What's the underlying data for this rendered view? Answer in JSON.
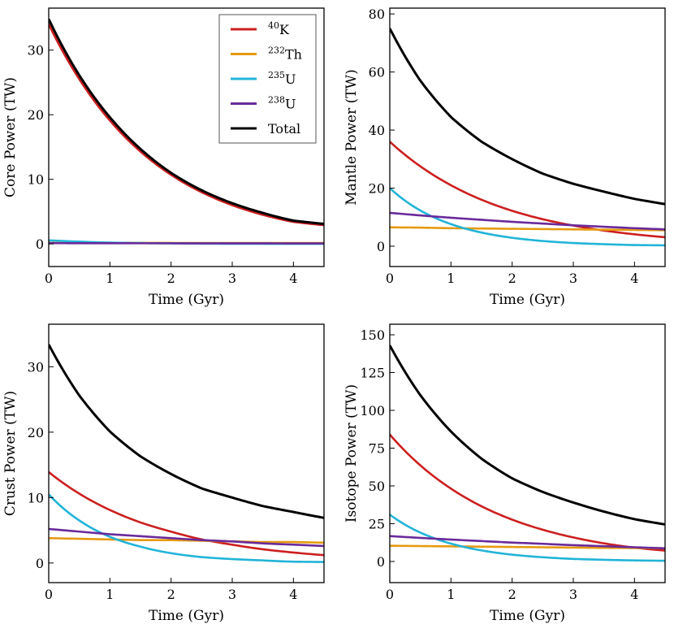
{
  "figure": {
    "legend": {
      "placement": "top-right of top-left panel",
      "entries": [
        {
          "key": "K40",
          "sup": "40",
          "base": "K",
          "color": "#cc1f1f"
        },
        {
          "key": "Th232",
          "sup": "232",
          "base": "Th",
          "color": "#e59a12"
        },
        {
          "key": "U235",
          "sup": "235",
          "base": "U",
          "color": "#22b4d8"
        },
        {
          "key": "U238",
          "sup": "238",
          "base": "U",
          "color": "#6a2a9a"
        },
        {
          "key": "Total",
          "sup": "",
          "base": "Total",
          "color": "#000000"
        }
      ]
    }
  },
  "chart_data": [
    {
      "id": "core",
      "type": "line",
      "title": "",
      "xlabel": "Time (Gyr)",
      "ylabel": "Core Power (TW)",
      "xlim": [
        0,
        4.5
      ],
      "ylim": [
        -3.5,
        36.5
      ],
      "xticks": [
        0,
        1,
        2,
        3,
        4
      ],
      "yticks": [
        0,
        10,
        20,
        30
      ],
      "grid": false,
      "x": [
        0,
        0.5,
        1,
        1.5,
        2,
        2.5,
        3,
        3.5,
        4,
        4.5
      ],
      "series": [
        {
          "name": "40K",
          "values": [
            34.0,
            25.5,
            19.1,
            14.3,
            10.7,
            8.0,
            6.0,
            4.5,
            3.4,
            2.9
          ]
        },
        {
          "name": "232Th",
          "values": [
            0.15,
            0.15,
            0.15,
            0.15,
            0.15,
            0.14,
            0.14,
            0.14,
            0.14,
            0.14
          ]
        },
        {
          "name": "235U",
          "values": [
            0.55,
            0.35,
            0.2,
            0.13,
            0.08,
            0.05,
            0.03,
            0.02,
            0.01,
            0.01
          ]
        },
        {
          "name": "238U",
          "values": [
            0.12,
            0.11,
            0.11,
            0.1,
            0.1,
            0.09,
            0.09,
            0.09,
            0.08,
            0.08
          ]
        },
        {
          "name": "Total",
          "values": [
            34.8,
            26.1,
            19.6,
            14.7,
            11.0,
            8.3,
            6.3,
            4.8,
            3.6,
            3.1
          ]
        }
      ]
    },
    {
      "id": "mantle",
      "type": "line",
      "title": "",
      "xlabel": "Time (Gyr)",
      "ylabel": "Mantle Power (TW)",
      "xlim": [
        0,
        4.5
      ],
      "ylim": [
        -7,
        82
      ],
      "xticks": [
        0,
        1,
        2,
        3,
        4
      ],
      "yticks": [
        0,
        20,
        40,
        60,
        80
      ],
      "grid": false,
      "x": [
        0,
        0.5,
        1,
        1.5,
        2,
        2.5,
        3,
        3.5,
        4,
        4.5
      ],
      "series": [
        {
          "name": "40K",
          "values": [
            36.0,
            27.5,
            21.0,
            16.0,
            12.2,
            9.3,
            7.1,
            5.4,
            4.1,
            3.1
          ]
        },
        {
          "name": "232Th",
          "values": [
            6.5,
            6.4,
            6.2,
            6.1,
            6.0,
            5.9,
            5.8,
            5.7,
            5.6,
            5.5
          ]
        },
        {
          "name": "235U",
          "values": [
            20.0,
            12.3,
            7.6,
            4.7,
            2.9,
            1.8,
            1.1,
            0.7,
            0.4,
            0.3
          ]
        },
        {
          "name": "238U",
          "values": [
            11.5,
            10.6,
            9.8,
            9.1,
            8.4,
            7.8,
            7.2,
            6.7,
            6.2,
            5.8
          ]
        },
        {
          "name": "Total",
          "values": [
            75.0,
            57.0,
            44.5,
            36.0,
            30.0,
            25.0,
            21.5,
            18.8,
            16.3,
            14.5
          ]
        }
      ]
    },
    {
      "id": "crust",
      "type": "line",
      "title": "",
      "xlabel": "Time (Gyr)",
      "ylabel": "Crust Power (TW)",
      "xlim": [
        0,
        4.5
      ],
      "ylim": [
        -3,
        36.5
      ],
      "xticks": [
        0,
        1,
        2,
        3,
        4
      ],
      "yticks": [
        0,
        10,
        20,
        30
      ],
      "grid": false,
      "x": [
        0,
        0.5,
        1,
        1.5,
        2,
        2.5,
        3,
        3.5,
        4,
        4.5
      ],
      "series": [
        {
          "name": "40K",
          "values": [
            13.9,
            10.6,
            8.1,
            6.2,
            4.8,
            3.6,
            2.8,
            2.1,
            1.6,
            1.2
          ]
        },
        {
          "name": "232Th",
          "values": [
            3.8,
            3.7,
            3.6,
            3.5,
            3.5,
            3.4,
            3.3,
            3.2,
            3.2,
            3.1
          ]
        },
        {
          "name": "235U",
          "values": [
            10.5,
            6.5,
            4.0,
            2.5,
            1.5,
            0.9,
            0.6,
            0.4,
            0.2,
            0.15
          ]
        },
        {
          "name": "238U",
          "values": [
            5.2,
            4.8,
            4.4,
            4.1,
            3.8,
            3.5,
            3.3,
            3.0,
            2.8,
            2.6
          ]
        },
        {
          "name": "Total",
          "values": [
            33.4,
            25.6,
            20.1,
            16.3,
            13.6,
            11.4,
            10.0,
            8.7,
            7.8,
            6.9
          ]
        }
      ]
    },
    {
      "id": "isotope",
      "type": "line",
      "title": "",
      "xlabel": "Time (Gyr)",
      "ylabel": "Isotope Power (TW)",
      "xlim": [
        0,
        4.5
      ],
      "ylim": [
        -14,
        157
      ],
      "xticks": [
        0,
        1,
        2,
        3,
        4
      ],
      "yticks": [
        0,
        25,
        50,
        75,
        100,
        125,
        150
      ],
      "grid": false,
      "x": [
        0,
        0.5,
        1,
        1.5,
        2,
        2.5,
        3,
        3.5,
        4,
        4.5
      ],
      "series": [
        {
          "name": "40K",
          "values": [
            84.0,
            63.6,
            48.2,
            36.5,
            27.7,
            21.0,
            15.9,
            12.0,
            9.1,
            7.2
          ]
        },
        {
          "name": "232Th",
          "values": [
            10.4,
            10.2,
            10.0,
            9.8,
            9.6,
            9.4,
            9.2,
            9.0,
            8.9,
            8.7
          ]
        },
        {
          "name": "235U",
          "values": [
            31.0,
            19.1,
            11.8,
            7.3,
            4.5,
            2.8,
            1.7,
            1.1,
            0.7,
            0.45
          ]
        },
        {
          "name": "238U",
          "values": [
            16.8,
            15.6,
            14.5,
            13.5,
            12.5,
            11.7,
            10.8,
            10.1,
            9.4,
            8.7
          ]
        },
        {
          "name": "Total",
          "values": [
            143.0,
            110.0,
            86.0,
            68.0,
            55.0,
            46.0,
            39.0,
            33.0,
            28.0,
            24.5
          ]
        }
      ]
    }
  ]
}
